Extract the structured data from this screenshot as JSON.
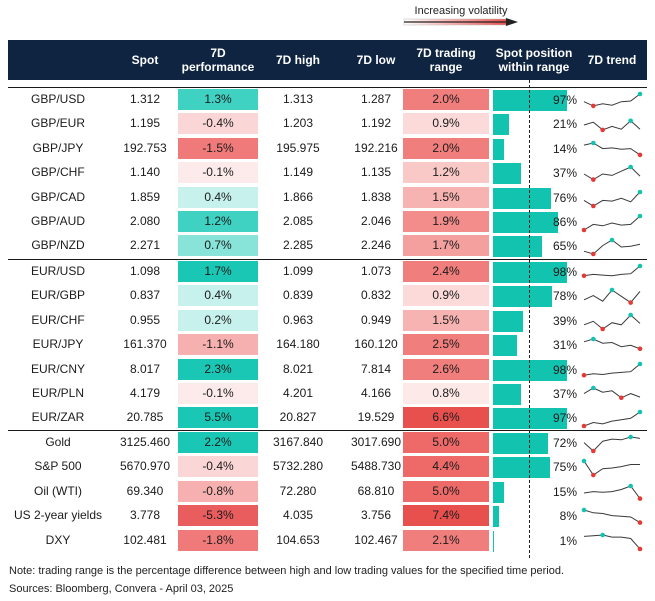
{
  "legend": {
    "label": "Increasing volatility"
  },
  "colors": {
    "header_bg": "#0e2440",
    "bar": "#12c3b0",
    "trend_line": "#3a3a3a",
    "trend_low_dot": "#e53935",
    "trend_high_dot": "#12c3b0"
  },
  "columns": {
    "spot": "Spot",
    "perf": "7D performance",
    "high": "7D high",
    "low": "7D low",
    "range": "7D trading range",
    "position": "Spot position within range",
    "trend": "7D trend"
  },
  "sections": [
    {
      "rows": [
        {
          "pair": "GBP/USD",
          "spot": "1.312",
          "perf": "1.3%",
          "perf_value": 1.3,
          "high": "1.313",
          "low": "1.287",
          "range": "2.0%",
          "range_value": 2.0,
          "position": "97%",
          "position_value": 97,
          "trend": [
            0.45,
            0.15,
            0.3,
            0.2,
            0.45,
            0.5,
            1.0
          ]
        },
        {
          "pair": "GBP/EUR",
          "spot": "1.195",
          "perf": "-0.4%",
          "perf_value": -0.4,
          "high": "1.203",
          "low": "1.192",
          "range": "0.9%",
          "range_value": 0.9,
          "position": "21%",
          "position_value": 21,
          "trend": [
            0.5,
            0.7,
            0.15,
            0.4,
            0.2,
            0.8,
            0.2
          ]
        },
        {
          "pair": "GBP/JPY",
          "spot": "192.753",
          "perf": "-1.5%",
          "perf_value": -1.5,
          "high": "195.975",
          "low": "192.216",
          "range": "2.0%",
          "range_value": 2.0,
          "position": "14%",
          "position_value": 14,
          "trend": [
            0.85,
            1.0,
            0.6,
            0.65,
            0.55,
            0.6,
            0.15
          ]
        },
        {
          "pair": "GBP/CHF",
          "spot": "1.140",
          "perf": "-0.1%",
          "perf_value": -0.1,
          "high": "1.149",
          "low": "1.135",
          "range": "1.2%",
          "range_value": 1.2,
          "position": "37%",
          "position_value": 37,
          "trend": [
            0.5,
            0.1,
            0.5,
            0.4,
            0.7,
            1.0,
            0.35
          ]
        },
        {
          "pair": "GBP/CAD",
          "spot": "1.859",
          "perf": "0.4%",
          "perf_value": 0.4,
          "high": "1.866",
          "low": "1.838",
          "range": "1.5%",
          "range_value": 1.5,
          "position": "76%",
          "position_value": 76,
          "trend": [
            0.4,
            0.0,
            0.4,
            0.35,
            0.55,
            0.3,
            1.0
          ]
        },
        {
          "pair": "GBP/AUD",
          "spot": "2.080",
          "perf": "1.2%",
          "perf_value": 1.2,
          "high": "2.085",
          "low": "2.046",
          "range": "1.9%",
          "range_value": 1.9,
          "position": "86%",
          "position_value": 86,
          "trend": [
            0.0,
            0.4,
            0.3,
            0.5,
            0.35,
            0.4,
            1.0
          ]
        },
        {
          "pair": "GBP/NZD",
          "spot": "2.271",
          "perf": "0.7%",
          "perf_value": 0.7,
          "high": "2.285",
          "low": "2.246",
          "range": "1.7%",
          "range_value": 1.7,
          "position": "65%",
          "position_value": 65,
          "trend": [
            0.2,
            0.0,
            0.6,
            1.0,
            0.5,
            0.55,
            0.7
          ]
        }
      ]
    },
    {
      "rows": [
        {
          "pair": "EUR/USD",
          "spot": "1.098",
          "perf": "1.7%",
          "perf_value": 1.7,
          "high": "1.099",
          "low": "1.073",
          "range": "2.4%",
          "range_value": 2.4,
          "position": "98%",
          "position_value": 98,
          "trend": [
            0.3,
            0.4,
            0.35,
            0.3,
            0.4,
            0.45,
            1.0
          ]
        },
        {
          "pair": "EUR/GBP",
          "spot": "0.837",
          "perf": "0.4%",
          "perf_value": 0.4,
          "high": "0.839",
          "low": "0.832",
          "range": "0.9%",
          "range_value": 0.9,
          "position": "78%",
          "position_value": 78,
          "trend": [
            0.3,
            0.6,
            0.2,
            1.0,
            0.55,
            0.1,
            0.9
          ]
        },
        {
          "pair": "EUR/CHF",
          "spot": "0.955",
          "perf": "0.2%",
          "perf_value": 0.2,
          "high": "0.963",
          "low": "0.949",
          "range": "1.5%",
          "range_value": 1.5,
          "position": "39%",
          "position_value": 39,
          "trend": [
            0.3,
            0.55,
            0.0,
            0.45,
            0.3,
            1.0,
            0.4
          ]
        },
        {
          "pair": "EUR/JPY",
          "spot": "161.370",
          "perf": "-1.1%",
          "perf_value": -1.1,
          "high": "164.180",
          "low": "160.120",
          "range": "2.5%",
          "range_value": 2.5,
          "position": "31%",
          "position_value": 31,
          "trend": [
            0.8,
            1.0,
            0.7,
            0.75,
            0.45,
            0.55,
            0.3
          ]
        },
        {
          "pair": "EUR/CNY",
          "spot": "8.017",
          "perf": "2.3%",
          "perf_value": 2.3,
          "high": "8.021",
          "low": "7.814",
          "range": "2.6%",
          "range_value": 2.6,
          "position": "98%",
          "position_value": 98,
          "trend": [
            0.2,
            0.3,
            0.25,
            0.35,
            0.4,
            0.45,
            1.0
          ]
        },
        {
          "pair": "EUR/PLN",
          "spot": "4.179",
          "perf": "-0.1%",
          "perf_value": -0.1,
          "high": "4.201",
          "low": "4.166",
          "range": "0.8%",
          "range_value": 0.8,
          "position": "37%",
          "position_value": 37,
          "trend": [
            0.6,
            1.0,
            0.7,
            0.8,
            0.3,
            0.6,
            0.35
          ]
        },
        {
          "pair": "EUR/ZAR",
          "spot": "20.785",
          "perf": "5.5%",
          "perf_value": 5.5,
          "high": "20.827",
          "low": "19.529",
          "range": "6.6%",
          "range_value": 6.6,
          "position": "97%",
          "position_value": 97,
          "trend": [
            0.0,
            0.25,
            0.15,
            0.35,
            0.45,
            0.55,
            1.0
          ]
        }
      ]
    },
    {
      "rows": [
        {
          "pair": "Gold",
          "spot": "3125.460",
          "perf": "2.2%",
          "perf_value": 2.2,
          "high": "3167.840",
          "low": "3017.690",
          "range": "5.0%",
          "range_value": 5.0,
          "position": "72%",
          "position_value": 72,
          "trend": [
            0.6,
            0.0,
            0.7,
            0.85,
            0.8,
            1.0,
            0.9
          ]
        },
        {
          "pair": "S&P 500",
          "spot": "5670.970",
          "perf": "-0.4%",
          "perf_value": -0.4,
          "high": "5732.280",
          "low": "5488.730",
          "range": "4.4%",
          "range_value": 4.4,
          "position": "75%",
          "position_value": 75,
          "trend": [
            1.0,
            0.0,
            0.45,
            0.5,
            0.6,
            0.75,
            0.75
          ]
        },
        {
          "pair": "Oil (WTI)",
          "spot": "69.340",
          "perf": "-0.8%",
          "perf_value": -0.8,
          "high": "72.280",
          "low": "68.810",
          "range": "5.0%",
          "range_value": 5.0,
          "position": "15%",
          "position_value": 15,
          "trend": [
            0.5,
            0.6,
            0.55,
            0.6,
            0.75,
            1.0,
            0.1
          ]
        },
        {
          "pair": "US 2-year yields",
          "spot": "3.778",
          "perf": "-5.3%",
          "perf_value": -5.3,
          "high": "4.035",
          "low": "3.756",
          "range": "7.4%",
          "range_value": 7.4,
          "position": "8%",
          "position_value": 8,
          "trend": [
            1.0,
            0.8,
            0.75,
            0.6,
            0.55,
            0.5,
            0.1
          ]
        },
        {
          "pair": "DXY",
          "spot": "102.481",
          "perf": "-1.8%",
          "perf_value": -1.8,
          "high": "104.653",
          "low": "102.467",
          "range": "2.1%",
          "range_value": 2.1,
          "position": "1%",
          "position_value": 1,
          "trend": [
            0.9,
            0.95,
            1.0,
            0.85,
            0.85,
            0.75,
            0.0
          ]
        }
      ]
    }
  ],
  "footer": {
    "note": "Note: trading range is the percentage difference between high and low trading values for the specified time period.",
    "sources": "Sources: Bloomberg, Convera - April 03, 2025"
  }
}
